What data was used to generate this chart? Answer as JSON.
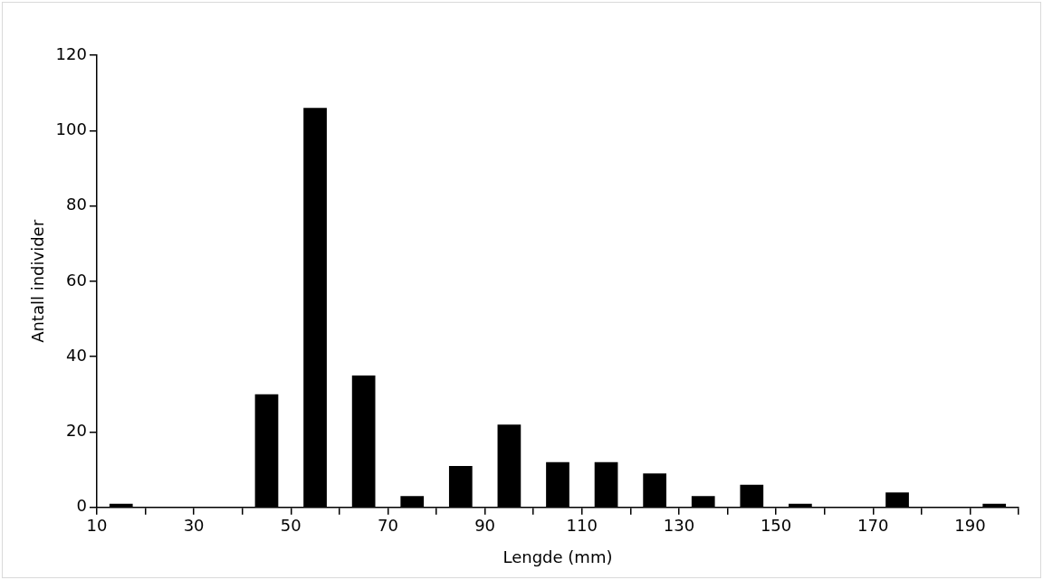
{
  "chart_data": {
    "type": "histogram",
    "xlabel": "Lengde (mm)",
    "ylabel": "Antall individer",
    "bins": [
      10,
      20,
      30,
      40,
      50,
      60,
      70,
      80,
      90,
      100,
      110,
      120,
      130,
      140,
      150,
      160,
      170,
      180,
      190,
      200
    ],
    "values": [
      1,
      0,
      0,
      30,
      106,
      35,
      3,
      11,
      22,
      12,
      12,
      9,
      3,
      6,
      1,
      0,
      4,
      0,
      1
    ],
    "color": "#000000",
    "xlim": [
      10,
      200
    ],
    "xticks": [
      10,
      {
        "value": 20,
        "label": null
      },
      30,
      {
        "value": 40,
        "label": null
      },
      50,
      {
        "value": 60,
        "label": null
      },
      70,
      {
        "value": 80,
        "label": null
      },
      90,
      {
        "value": 100,
        "label": null
      },
      110,
      {
        "value": 120,
        "label": null
      },
      130,
      {
        "value": 140,
        "label": null
      },
      150,
      {
        "value": 160,
        "label": null
      },
      170,
      {
        "value": 180,
        "label": null
      },
      190,
      {
        "value": 200,
        "label": null
      }
    ],
    "ylim": [
      0,
      120
    ],
    "yticks": [
      0,
      20,
      40,
      60,
      80,
      100,
      120
    ],
    "grid": false,
    "legend": false
  }
}
